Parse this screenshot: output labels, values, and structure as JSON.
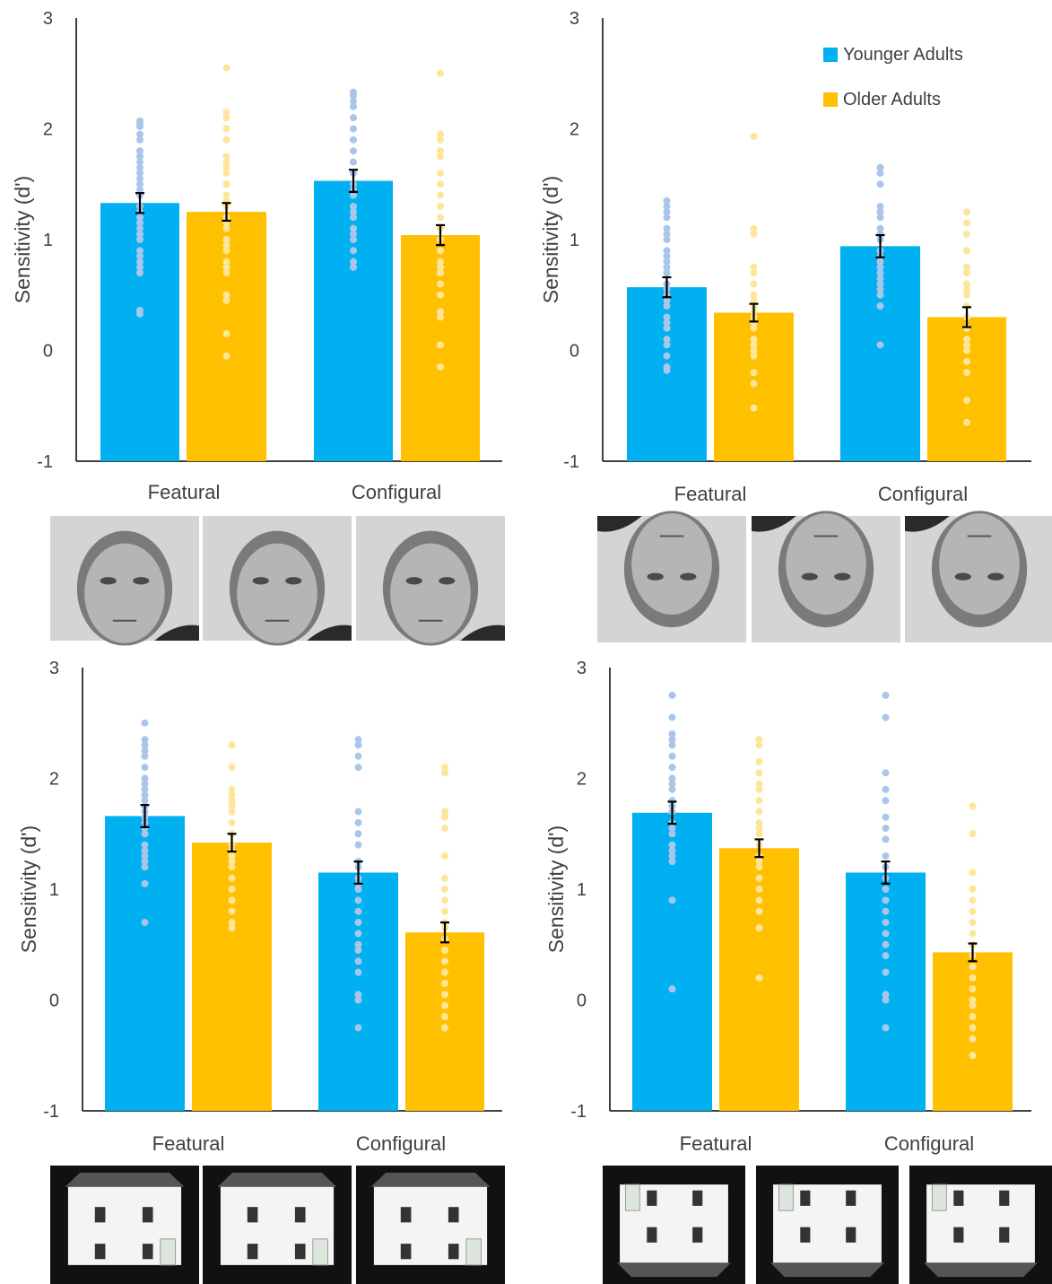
{
  "colors": {
    "younger_bar": "#00b0f0",
    "older_bar": "#ffc000",
    "younger_dot": "#a9c6ea",
    "older_dot": "#fde59a",
    "axis": "#000000",
    "text": "#404040",
    "photo_bg": "#cfcfcf"
  },
  "legend": {
    "younger": "Younger Adults",
    "older": "Older Adults",
    "placement": "top-right of upper-right panel"
  },
  "thumbnails": [
    {
      "panel": "faces-upright",
      "count": 3,
      "description_icon": "face-photo"
    },
    {
      "panel": "faces-inverted",
      "count": 3,
      "description_icon": "face-photo-inverted"
    },
    {
      "panel": "houses-upright",
      "count": 3,
      "description_icon": "house-photo"
    },
    {
      "panel": "houses-inverted",
      "count": 3,
      "description_icon": "house-photo-inverted"
    }
  ],
  "chart_data": [
    {
      "type": "bar",
      "ylabel": "Sensitivity (d')",
      "ylim": [
        -1,
        3
      ],
      "yticks": [
        "-1",
        "0",
        "1",
        "2",
        "3"
      ],
      "categories": [
        "Featural",
        "Configural"
      ],
      "show_legend": false,
      "grid": false,
      "series": [
        {
          "name": "Younger Adults",
          "values": [
            1.33,
            1.53
          ],
          "errors": [
            0.09,
            0.1
          ],
          "points": [
            [
              0.33,
              0.36,
              0.7,
              0.75,
              0.8,
              0.85,
              0.9,
              1.0,
              1.05,
              1.1,
              1.15,
              1.2,
              1.25,
              1.3,
              1.4,
              1.45,
              1.5,
              1.55,
              1.6,
              1.65,
              1.7,
              1.75,
              1.8,
              1.9,
              1.95,
              2.02,
              2.05,
              2.07
            ],
            [
              0.75,
              0.8,
              0.9,
              1.0,
              1.05,
              1.1,
              1.2,
              1.25,
              1.3,
              1.4,
              1.45,
              1.5,
              1.6,
              1.7,
              1.8,
              1.9,
              2.0,
              2.1,
              2.2,
              2.25,
              2.3,
              2.33
            ]
          ]
        },
        {
          "name": "Older Adults",
          "values": [
            1.25,
            1.04
          ],
          "errors": [
            0.08,
            0.09
          ],
          "points": [
            [
              -0.05,
              0.15,
              0.45,
              0.5,
              0.7,
              0.75,
              0.8,
              0.9,
              0.95,
              1.0,
              1.1,
              1.15,
              1.2,
              1.3,
              1.35,
              1.4,
              1.5,
              1.6,
              1.65,
              1.7,
              1.75,
              1.9,
              2.0,
              2.1,
              2.15,
              2.55
            ],
            [
              -0.15,
              0.05,
              0.3,
              0.35,
              0.5,
              0.6,
              0.7,
              0.75,
              0.8,
              0.9,
              1.0,
              1.1,
              1.2,
              1.3,
              1.4,
              1.5,
              1.6,
              1.75,
              1.8,
              1.9,
              1.95,
              2.5
            ]
          ]
        }
      ]
    },
    {
      "type": "bar",
      "ylabel": "Sensitivity (d')",
      "ylim": [
        -1,
        3
      ],
      "yticks": [
        "-1",
        "0",
        "1",
        "2",
        "3"
      ],
      "categories": [
        "Featural",
        "Configural"
      ],
      "show_legend": true,
      "grid": false,
      "series": [
        {
          "name": "Younger Adults",
          "values": [
            0.57,
            0.94
          ],
          "errors": [
            0.09,
            0.1
          ],
          "points": [
            [
              -0.18,
              -0.15,
              -0.05,
              0.05,
              0.1,
              0.2,
              0.25,
              0.3,
              0.4,
              0.45,
              0.5,
              0.55,
              0.6,
              0.7,
              0.75,
              0.8,
              0.85,
              0.9,
              1.0,
              1.05,
              1.1,
              1.2,
              1.25,
              1.3,
              1.35
            ],
            [
              0.05,
              0.4,
              0.5,
              0.55,
              0.6,
              0.65,
              0.7,
              0.75,
              0.8,
              0.85,
              0.9,
              1.0,
              1.05,
              1.1,
              1.2,
              1.25,
              1.3,
              1.5,
              1.6,
              1.65
            ]
          ]
        },
        {
          "name": "Older Adults",
          "values": [
            0.34,
            0.3
          ],
          "errors": [
            0.08,
            0.09
          ],
          "points": [
            [
              -0.52,
              -0.3,
              -0.2,
              -0.05,
              0.0,
              0.05,
              0.1,
              0.2,
              0.25,
              0.3,
              0.35,
              0.4,
              0.45,
              0.5,
              0.6,
              0.7,
              0.75,
              1.05,
              1.1,
              1.93
            ],
            [
              -0.65,
              -0.45,
              -0.2,
              -0.1,
              0.0,
              0.05,
              0.1,
              0.2,
              0.3,
              0.4,
              0.5,
              0.55,
              0.6,
              0.7,
              0.75,
              0.9,
              1.05,
              1.15,
              1.25
            ]
          ]
        }
      ]
    },
    {
      "type": "bar",
      "ylabel": "Sensitivity (d')",
      "ylim": [
        -1,
        3
      ],
      "yticks": [
        "-1",
        "0",
        "1",
        "2",
        "3"
      ],
      "categories": [
        "Featural",
        "Configural"
      ],
      "show_legend": false,
      "grid": false,
      "series": [
        {
          "name": "Younger Adults",
          "values": [
            1.66,
            1.15
          ],
          "errors": [
            0.1,
            0.1
          ],
          "points": [
            [
              0.7,
              1.05,
              1.2,
              1.25,
              1.3,
              1.35,
              1.4,
              1.5,
              1.55,
              1.6,
              1.65,
              1.7,
              1.75,
              1.8,
              1.85,
              1.9,
              1.95,
              2.0,
              2.1,
              2.2,
              2.25,
              2.3,
              2.35,
              2.5
            ],
            [
              -0.25,
              0.0,
              0.05,
              0.25,
              0.35,
              0.45,
              0.5,
              0.6,
              0.7,
              0.8,
              0.9,
              1.0,
              1.05,
              1.1,
              1.2,
              1.25,
              1.4,
              1.5,
              1.6,
              1.7,
              2.1,
              2.2,
              2.3,
              2.35
            ]
          ]
        },
        {
          "name": "Older Adults",
          "values": [
            1.42,
            0.61
          ],
          "errors": [
            0.08,
            0.09
          ],
          "points": [
            [
              0.65,
              0.7,
              0.8,
              0.9,
              1.0,
              1.1,
              1.2,
              1.25,
              1.3,
              1.35,
              1.4,
              1.5,
              1.6,
              1.7,
              1.75,
              1.8,
              1.85,
              1.9,
              2.1,
              2.3
            ],
            [
              -0.25,
              -0.15,
              -0.05,
              0.05,
              0.15,
              0.25,
              0.35,
              0.45,
              0.55,
              0.65,
              0.7,
              0.8,
              0.9,
              1.0,
              1.1,
              1.3,
              1.55,
              1.65,
              1.7,
              2.05,
              2.1
            ]
          ]
        }
      ]
    },
    {
      "type": "bar",
      "ylabel": "Sensitivity (d')",
      "ylim": [
        -1,
        3
      ],
      "yticks": [
        "-1",
        "0",
        "1",
        "2",
        "3"
      ],
      "categories": [
        "Featural",
        "Configural"
      ],
      "show_legend": false,
      "grid": false,
      "series": [
        {
          "name": "Younger Adults",
          "values": [
            1.69,
            1.15
          ],
          "errors": [
            0.1,
            0.1
          ],
          "points": [
            [
              0.1,
              0.9,
              1.25,
              1.3,
              1.35,
              1.4,
              1.5,
              1.55,
              1.6,
              1.7,
              1.75,
              1.8,
              1.9,
              1.95,
              2.0,
              2.1,
              2.2,
              2.3,
              2.35,
              2.4,
              2.55,
              2.75
            ],
            [
              -0.25,
              0.0,
              0.05,
              0.25,
              0.4,
              0.5,
              0.6,
              0.7,
              0.8,
              0.9,
              1.0,
              1.1,
              1.2,
              1.3,
              1.45,
              1.55,
              1.65,
              1.8,
              1.9,
              2.05,
              2.55,
              2.75
            ]
          ]
        },
        {
          "name": "Older Adults",
          "values": [
            1.37,
            0.43
          ],
          "errors": [
            0.08,
            0.08
          ],
          "points": [
            [
              0.2,
              0.65,
              0.8,
              0.9,
              1.0,
              1.1,
              1.2,
              1.25,
              1.3,
              1.4,
              1.5,
              1.55,
              1.6,
              1.7,
              1.8,
              1.9,
              1.95,
              2.05,
              2.15,
              2.3,
              2.35
            ],
            [
              -0.5,
              -0.35,
              -0.25,
              -0.15,
              -0.05,
              0.0,
              0.1,
              0.2,
              0.3,
              0.4,
              0.5,
              0.6,
              0.7,
              0.8,
              0.9,
              1.0,
              1.15,
              1.5,
              1.75
            ]
          ]
        }
      ]
    }
  ]
}
